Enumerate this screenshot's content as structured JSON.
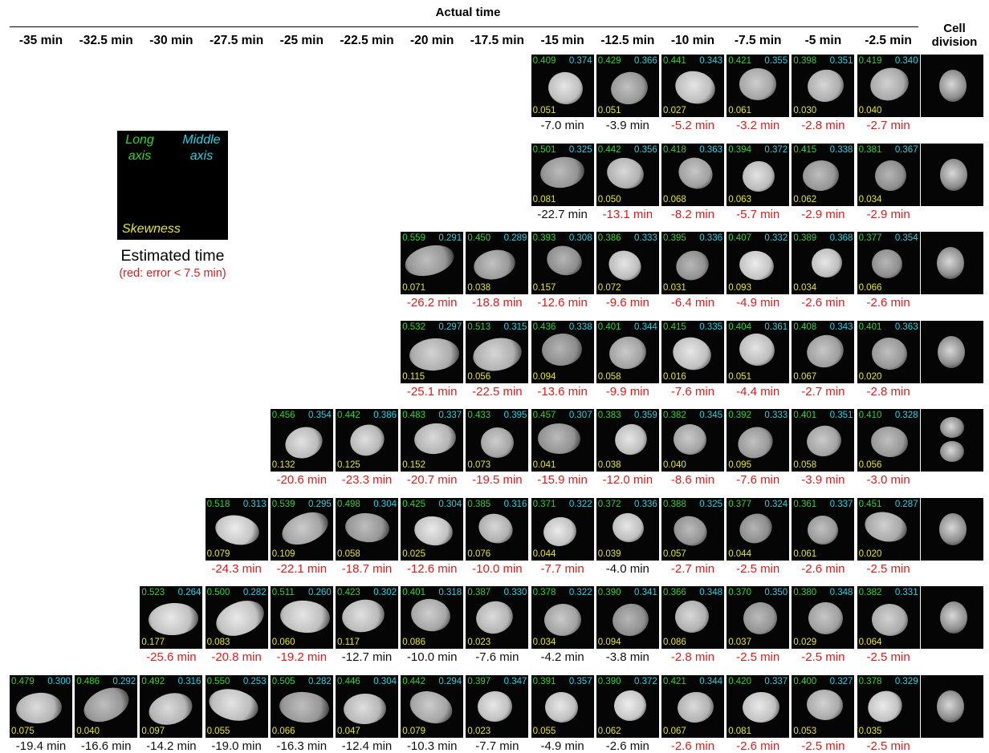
{
  "header": {
    "title": "Actual time",
    "division_label_1": "Cell",
    "division_label_2": "division"
  },
  "columns": [
    "-35 min",
    "-32.5 min",
    "-30 min",
    "-27.5 min",
    "-25 min",
    "-22.5 min",
    "-20 min",
    "-17.5 min",
    "-15 min",
    "-12.5 min",
    "-10 min",
    "-7.5 min",
    "-5 min",
    "-2.5 min"
  ],
  "legend": {
    "long_line1": "Long",
    "long_line2": "axis",
    "middle_line1": "Middle",
    "middle_line2": "axis",
    "skewness": "Skewness",
    "estimated_time": "Estimated time",
    "note": "(red: error < 7.5 min)"
  },
  "colors": {
    "long_axis": "#2fd42f",
    "middle_axis": "#23d3e6",
    "skewness": "#e6e61e",
    "error_under_7_5": "#e11b1b",
    "error_over": "#111111"
  },
  "rows": [
    {
      "start_col": 8,
      "cells": [
        {
          "long": "0.409",
          "mid": "0.374",
          "skew": "0.051",
          "est": "-7.0 min",
          "red": false
        },
        {
          "long": "0.429",
          "mid": "0.366",
          "skew": "0.051",
          "est": "-3.9 min",
          "red": false
        },
        {
          "long": "0.441",
          "mid": "0.343",
          "skew": "0.027",
          "est": "-5.2 min",
          "red": true
        },
        {
          "long": "0.421",
          "mid": "0.355",
          "skew": "0.061",
          "est": "-3.2 min",
          "red": true
        },
        {
          "long": "0.398",
          "mid": "0.351",
          "skew": "0.030",
          "est": "-2.8 min",
          "red": true
        },
        {
          "long": "0.419",
          "mid": "0.340",
          "skew": "0.040",
          "est": "-2.7 min",
          "red": true
        }
      ]
    },
    {
      "start_col": 8,
      "cells": [
        {
          "long": "0.501",
          "mid": "0.325",
          "skew": "0.081",
          "est": "-22.7 min",
          "red": false
        },
        {
          "long": "0.442",
          "mid": "0.356",
          "skew": "0.050",
          "est": "-13.1 min",
          "red": true
        },
        {
          "long": "0.418",
          "mid": "0.363",
          "skew": "0.068",
          "est": "-8.2 min",
          "red": true
        },
        {
          "long": "0.394",
          "mid": "0.372",
          "skew": "0.063",
          "est": "-5.7 min",
          "red": true
        },
        {
          "long": "0.415",
          "mid": "0.338",
          "skew": "0.062",
          "est": "-2.9 min",
          "red": true
        },
        {
          "long": "0.381",
          "mid": "0.367",
          "skew": "0.034",
          "est": "-2.9 min",
          "red": true
        }
      ]
    },
    {
      "start_col": 6,
      "cells": [
        {
          "long": "0.559",
          "mid": "0.291",
          "skew": "0.071",
          "est": "-26.2 min",
          "red": true
        },
        {
          "long": "0.450",
          "mid": "0.289",
          "skew": "0.038",
          "est": "-18.8 min",
          "red": true
        },
        {
          "long": "0.393",
          "mid": "0.308",
          "skew": "0.157",
          "est": "-12.6 min",
          "red": true
        },
        {
          "long": "0.386",
          "mid": "0.333",
          "skew": "0.072",
          "est": "-9.6 min",
          "red": true
        },
        {
          "long": "0.395",
          "mid": "0.336",
          "skew": "0.031",
          "est": "-6.4 min",
          "red": true
        },
        {
          "long": "0.407",
          "mid": "0.332",
          "skew": "0.093",
          "est": "-4.9 min",
          "red": true
        },
        {
          "long": "0.389",
          "mid": "0.368",
          "skew": "0.034",
          "est": "-2.6 min",
          "red": true
        },
        {
          "long": "0.377",
          "mid": "0.354",
          "skew": "0.066",
          "est": "-2.6 min",
          "red": true
        }
      ]
    },
    {
      "start_col": 6,
      "cells": [
        {
          "long": "0.532",
          "mid": "0.297",
          "skew": "0.115",
          "est": "-25.1 min",
          "red": true
        },
        {
          "long": "0.513",
          "mid": "0.315",
          "skew": "0.056",
          "est": "-22.5 min",
          "red": true
        },
        {
          "long": "0.436",
          "mid": "0.338",
          "skew": "0.094",
          "est": "-13.6 min",
          "red": true
        },
        {
          "long": "0.401",
          "mid": "0.344",
          "skew": "0.058",
          "est": "-9.9 min",
          "red": true
        },
        {
          "long": "0.415",
          "mid": "0.335",
          "skew": "0.016",
          "est": "-7.6 min",
          "red": true
        },
        {
          "long": "0.404",
          "mid": "0.361",
          "skew": "0.051",
          "est": "-4.4 min",
          "red": true
        },
        {
          "long": "0.408",
          "mid": "0.343",
          "skew": "0.067",
          "est": "-2.7 min",
          "red": true
        },
        {
          "long": "0.401",
          "mid": "0.363",
          "skew": "0.020",
          "est": "-2.8 min",
          "red": true
        }
      ]
    },
    {
      "start_col": 4,
      "cells": [
        {
          "long": "0.456",
          "mid": "0.354",
          "skew": "0.132",
          "est": "-20.6 min",
          "red": true
        },
        {
          "long": "0.442",
          "mid": "0.386",
          "skew": "0.125",
          "est": "-23.3 min",
          "red": true
        },
        {
          "long": "0.483",
          "mid": "0.337",
          "skew": "0.152",
          "est": "-20.7 min",
          "red": true
        },
        {
          "long": "0.433",
          "mid": "0.395",
          "skew": "0.073",
          "est": "-19.5 min",
          "red": true
        },
        {
          "long": "0.457",
          "mid": "0.307",
          "skew": "0.041",
          "est": "-15.9 min",
          "red": true
        },
        {
          "long": "0.383",
          "mid": "0.359",
          "skew": "0.038",
          "est": "-12.0 min",
          "red": true
        },
        {
          "long": "0.382",
          "mid": "0.345",
          "skew": "0.040",
          "est": "-8.6 min",
          "red": true
        },
        {
          "long": "0.392",
          "mid": "0.333",
          "skew": "0.095",
          "est": "-7.6 min",
          "red": true
        },
        {
          "long": "0.401",
          "mid": "0.351",
          "skew": "0.058",
          "est": "-3.9 min",
          "red": true
        },
        {
          "long": "0.410",
          "mid": "0.328",
          "skew": "0.056",
          "est": "-3.0 min",
          "red": true
        }
      ]
    },
    {
      "start_col": 3,
      "cells": [
        {
          "long": "0.518",
          "mid": "0.313",
          "skew": "0.079",
          "est": "-24.3 min",
          "red": true
        },
        {
          "long": "0.539",
          "mid": "0.295",
          "skew": "0.109",
          "est": "-22.1 min",
          "red": true
        },
        {
          "long": "0.498",
          "mid": "0.304",
          "skew": "0.058",
          "est": "-18.7 min",
          "red": true
        },
        {
          "long": "0.425",
          "mid": "0.304",
          "skew": "0.025",
          "est": "-12.6 min",
          "red": true
        },
        {
          "long": "0.385",
          "mid": "0.316",
          "skew": "0.076",
          "est": "-10.0 min",
          "red": true
        },
        {
          "long": "0.371",
          "mid": "0.322",
          "skew": "0.044",
          "est": "-7.7 min",
          "red": true
        },
        {
          "long": "0.372",
          "mid": "0.336",
          "skew": "0.039",
          "est": "-4.0 min",
          "red": false
        },
        {
          "long": "0.388",
          "mid": "0.325",
          "skew": "0.057",
          "est": "-2.7 min",
          "red": true
        },
        {
          "long": "0.377",
          "mid": "0.324",
          "skew": "0.044",
          "est": "-2.5 min",
          "red": true
        },
        {
          "long": "0.361",
          "mid": "0.337",
          "skew": "0.061",
          "est": "-2.6 min",
          "red": true
        },
        {
          "long": "0.451",
          "mid": "0.287",
          "skew": "0.020",
          "est": "-2.5 min",
          "red": true
        }
      ]
    },
    {
      "start_col": 2,
      "cells": [
        {
          "long": "0.523",
          "mid": "0.264",
          "skew": "0.177",
          "est": "-25.6 min",
          "red": true
        },
        {
          "long": "0.500",
          "mid": "0.282",
          "skew": "0.083",
          "est": "-20.8 min",
          "red": true
        },
        {
          "long": "0.511",
          "mid": "0.260",
          "skew": "0.060",
          "est": "-19.2 min",
          "red": true
        },
        {
          "long": "0.423",
          "mid": "0.302",
          "skew": "0.117",
          "est": "-12.7 min",
          "red": false
        },
        {
          "long": "0.401",
          "mid": "0.318",
          "skew": "0.086",
          "est": "-10.0 min",
          "red": false
        },
        {
          "long": "0.387",
          "mid": "0.330",
          "skew": "0.023",
          "est": "-7.6 min",
          "red": false
        },
        {
          "long": "0.378",
          "mid": "0.322",
          "skew": "0.034",
          "est": "-4.2 min",
          "red": false
        },
        {
          "long": "0.390",
          "mid": "0.341",
          "skew": "0.094",
          "est": "-3.8 min",
          "red": false
        },
        {
          "long": "0.366",
          "mid": "0.348",
          "skew": "0.086",
          "est": "-2.8 min",
          "red": true
        },
        {
          "long": "0.370",
          "mid": "0.350",
          "skew": "0.037",
          "est": "-2.5 min",
          "red": true
        },
        {
          "long": "0.380",
          "mid": "0.348",
          "skew": "0.029",
          "est": "-2.5 min",
          "red": true
        },
        {
          "long": "0.382",
          "mid": "0.331",
          "skew": "0.064",
          "est": "-2.5 min",
          "red": true
        }
      ]
    },
    {
      "start_col": 0,
      "cells": [
        {
          "long": "0.479",
          "mid": "0.300",
          "skew": "0.075",
          "est": "-19.4 min",
          "red": false
        },
        {
          "long": "0.486",
          "mid": "0.292",
          "skew": "0.040",
          "est": "-16.6 min",
          "red": false
        },
        {
          "long": "0.492",
          "mid": "0.316",
          "skew": "0.097",
          "est": "-14.2 min",
          "red": false
        },
        {
          "long": "0.550",
          "mid": "0.253",
          "skew": "0.055",
          "est": "-19.0 min",
          "red": false
        },
        {
          "long": "0.505",
          "mid": "0.282",
          "skew": "0.066",
          "est": "-16.3 min",
          "red": false
        },
        {
          "long": "0.446",
          "mid": "0.304",
          "skew": "0.047",
          "est": "-12.4 min",
          "red": false
        },
        {
          "long": "0.442",
          "mid": "0.294",
          "skew": "0.079",
          "est": "-10.3 min",
          "red": false
        },
        {
          "long": "0.397",
          "mid": "0.347",
          "skew": "0.023",
          "est": "-7.7 min",
          "red": false
        },
        {
          "long": "0.391",
          "mid": "0.357",
          "skew": "0.055",
          "est": "-4.9 min",
          "red": false
        },
        {
          "long": "0.390",
          "mid": "0.372",
          "skew": "0.062",
          "est": "-2.6 min",
          "red": false
        },
        {
          "long": "0.421",
          "mid": "0.344",
          "skew": "0.067",
          "est": "-2.6 min",
          "red": true
        },
        {
          "long": "0.420",
          "mid": "0.337",
          "skew": "0.081",
          "est": "-2.6 min",
          "red": true
        },
        {
          "long": "0.400",
          "mid": "0.327",
          "skew": "0.053",
          "est": "-2.5 min",
          "red": true
        },
        {
          "long": "0.378",
          "mid": "0.329",
          "skew": "0.035",
          "est": "-2.5 min",
          "red": true
        }
      ]
    }
  ]
}
